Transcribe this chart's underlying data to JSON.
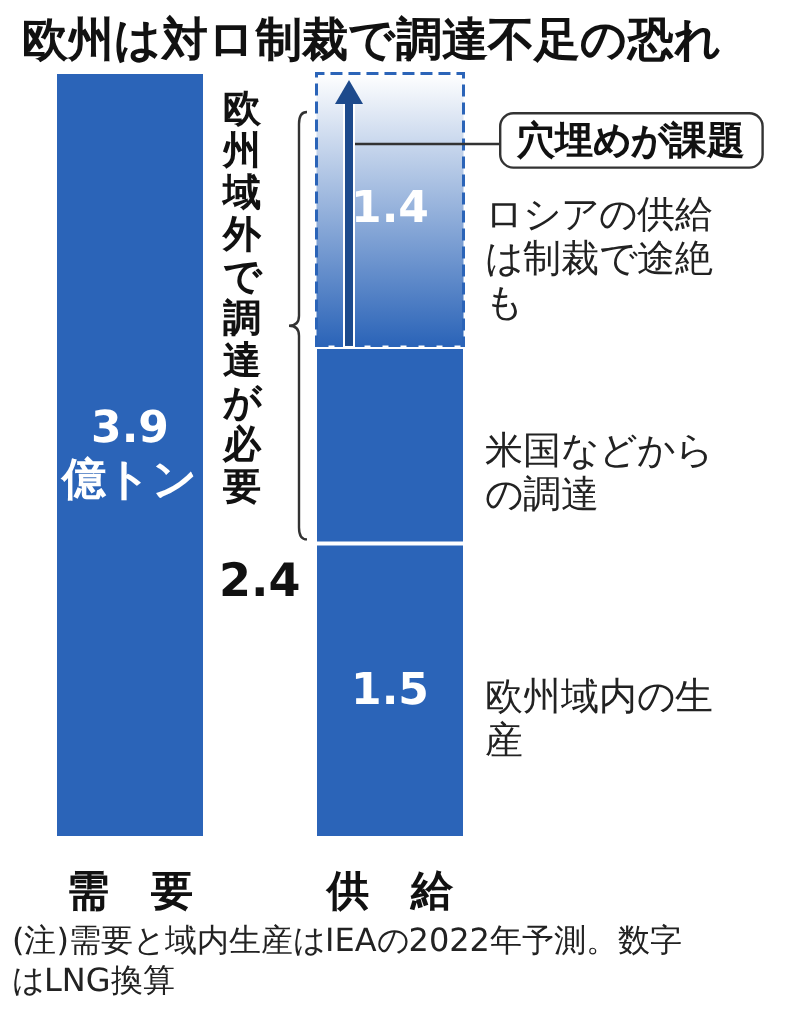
{
  "chart_data": {
    "type": "bar",
    "title": "欧州は対ロ制裁で調達不足の恐れ",
    "categories": [
      "需　要",
      "供　給"
    ],
    "stacked": true,
    "ylim": [
      0,
      3.9
    ],
    "tick_labels": "x",
    "series": [
      {
        "color": "#2b64b8",
        "values": [
          3.9,
          null
        ],
        "value_labels": [
          "3.9\n億トン",
          null
        ]
      },
      {
        "name": "欧州域内の生産",
        "color": "#2b64b8",
        "values": [
          null,
          1.5
        ],
        "value_labels": [
          null,
          "1.5"
        ]
      },
      {
        "name": "米国などからの調達",
        "color": "#2b64b8",
        "values": [
          null,
          1.0
        ],
        "value_labels": [
          null,
          null
        ]
      },
      {
        "name": "ロシアの供給は制裁で途絶も",
        "color": "#2b64b8",
        "values": [
          null,
          1.4
        ],
        "value_labels": [
          null,
          "1.4"
        ]
      }
    ],
    "annotations": [
      "欧州域外で調達が必要",
      "2.4",
      "穴埋めが課題",
      "(注)需要と域内生産はIEAの2022年予測。数字はLNG換算"
    ]
  }
}
